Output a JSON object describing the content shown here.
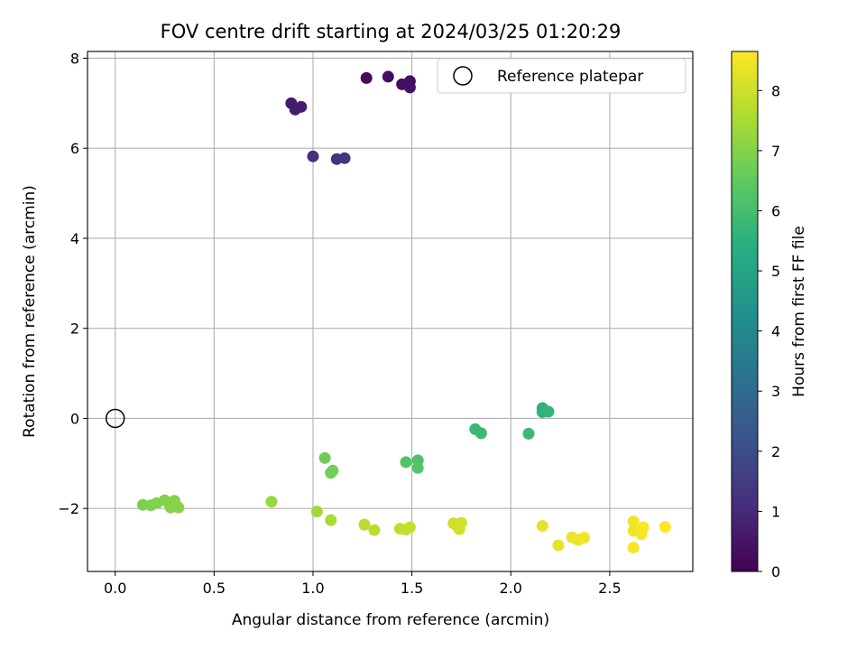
{
  "chart_data": {
    "type": "scatter",
    "title": "FOV centre drift starting at 2024/03/25 01:20:29",
    "xlabel": "Angular distance from reference (arcmin)",
    "ylabel": "Rotation from reference (arcmin)",
    "xlim": [
      -0.14,
      2.92
    ],
    "ylim": [
      -3.4,
      8.15
    ],
    "xticks": [
      "0.0",
      "0.5",
      "1.0",
      "1.5",
      "2.0",
      "2.5"
    ],
    "xtick_values": [
      0.0,
      0.5,
      1.0,
      1.5,
      2.0,
      2.5
    ],
    "yticks": [
      "−2",
      "0",
      "2",
      "4",
      "6",
      "8"
    ],
    "ytick_values": [
      -2,
      0,
      2,
      4,
      6,
      8
    ],
    "grid": true,
    "legend": {
      "placement": "top-right",
      "entries": [
        "Reference platepar"
      ]
    },
    "reference_point": {
      "x": 0.0,
      "y": 0.0
    },
    "colorbar": {
      "label": "Hours from first FF file",
      "range": [
        0,
        8.65
      ],
      "ticks": [
        "0",
        "1",
        "2",
        "3",
        "4",
        "5",
        "6",
        "7",
        "8"
      ],
      "tick_values": [
        0,
        1,
        2,
        3,
        4,
        5,
        6,
        7,
        8
      ],
      "colormap": "viridis"
    },
    "points": [
      {
        "x": 1.27,
        "y": 7.56,
        "h": 0.2
      },
      {
        "x": 1.38,
        "y": 7.59,
        "h": 0.3
      },
      {
        "x": 1.45,
        "y": 7.42,
        "h": 0.35
      },
      {
        "x": 1.49,
        "y": 7.49,
        "h": 0.35
      },
      {
        "x": 1.49,
        "y": 7.35,
        "h": 0.4
      },
      {
        "x": 0.89,
        "y": 7.0,
        "h": 0.65
      },
      {
        "x": 0.91,
        "y": 6.86,
        "h": 0.7
      },
      {
        "x": 0.94,
        "y": 6.92,
        "h": 0.7
      },
      {
        "x": 1.0,
        "y": 5.82,
        "h": 1.2
      },
      {
        "x": 1.12,
        "y": 5.76,
        "h": 1.25
      },
      {
        "x": 1.16,
        "y": 5.78,
        "h": 1.3
      },
      {
        "x": 2.16,
        "y": 0.23,
        "h": 5.5
      },
      {
        "x": 2.16,
        "y": 0.14,
        "h": 5.55
      },
      {
        "x": 2.19,
        "y": 0.15,
        "h": 5.6
      },
      {
        "x": 1.82,
        "y": -0.24,
        "h": 5.8
      },
      {
        "x": 1.85,
        "y": -0.33,
        "h": 5.8
      },
      {
        "x": 2.09,
        "y": -0.34,
        "h": 5.8
      },
      {
        "x": 1.53,
        "y": -0.93,
        "h": 6.2
      },
      {
        "x": 1.47,
        "y": -0.97,
        "h": 6.2
      },
      {
        "x": 1.53,
        "y": -1.1,
        "h": 6.25
      },
      {
        "x": 1.06,
        "y": -0.88,
        "h": 6.7
      },
      {
        "x": 1.1,
        "y": -1.16,
        "h": 6.75
      },
      {
        "x": 1.09,
        "y": -1.21,
        "h": 6.75
      },
      {
        "x": 0.14,
        "y": -1.92,
        "h": 6.9
      },
      {
        "x": 0.18,
        "y": -1.93,
        "h": 6.9
      },
      {
        "x": 0.21,
        "y": -1.88,
        "h": 6.95
      },
      {
        "x": 0.25,
        "y": -1.82,
        "h": 6.95
      },
      {
        "x": 0.27,
        "y": -1.87,
        "h": 7.0
      },
      {
        "x": 0.3,
        "y": -1.83,
        "h": 7.0
      },
      {
        "x": 0.28,
        "y": -1.98,
        "h": 7.05
      },
      {
        "x": 0.32,
        "y": -1.98,
        "h": 7.05
      },
      {
        "x": 0.79,
        "y": -1.85,
        "h": 7.3
      },
      {
        "x": 1.02,
        "y": -2.07,
        "h": 7.4
      },
      {
        "x": 1.09,
        "y": -2.26,
        "h": 7.5
      },
      {
        "x": 1.26,
        "y": -2.36,
        "h": 7.7
      },
      {
        "x": 1.31,
        "y": -2.48,
        "h": 7.75
      },
      {
        "x": 1.44,
        "y": -2.45,
        "h": 7.8
      },
      {
        "x": 1.47,
        "y": -2.47,
        "h": 7.85
      },
      {
        "x": 1.49,
        "y": -2.42,
        "h": 7.85
      },
      {
        "x": 1.71,
        "y": -2.33,
        "h": 8.0
      },
      {
        "x": 1.73,
        "y": -2.4,
        "h": 8.0
      },
      {
        "x": 1.75,
        "y": -2.32,
        "h": 8.05
      },
      {
        "x": 1.74,
        "y": -2.46,
        "h": 8.05
      },
      {
        "x": 2.16,
        "y": -2.39,
        "h": 8.3
      },
      {
        "x": 2.24,
        "y": -2.82,
        "h": 8.35
      },
      {
        "x": 2.31,
        "y": -2.64,
        "h": 8.4
      },
      {
        "x": 2.34,
        "y": -2.7,
        "h": 8.4
      },
      {
        "x": 2.37,
        "y": -2.65,
        "h": 8.45
      },
      {
        "x": 2.62,
        "y": -2.29,
        "h": 8.5
      },
      {
        "x": 2.62,
        "y": -2.5,
        "h": 8.5
      },
      {
        "x": 2.62,
        "y": -2.87,
        "h": 8.55
      },
      {
        "x": 2.66,
        "y": -2.57,
        "h": 8.55
      },
      {
        "x": 2.67,
        "y": -2.42,
        "h": 8.6
      },
      {
        "x": 2.78,
        "y": -2.41,
        "h": 8.65
      }
    ]
  }
}
